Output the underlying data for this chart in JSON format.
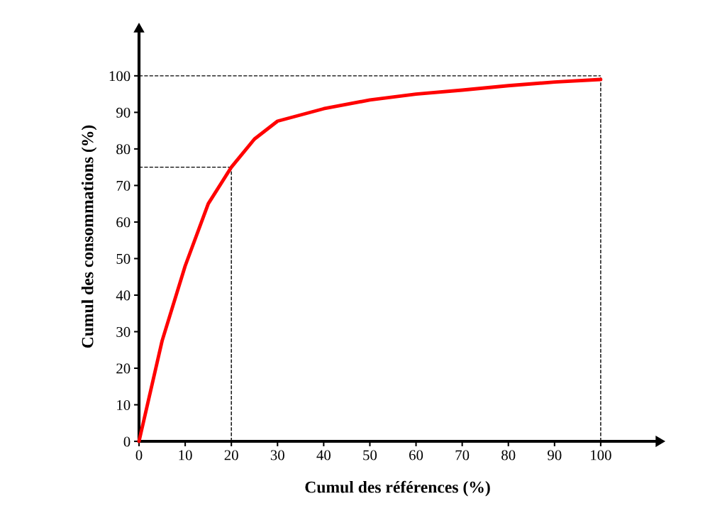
{
  "chart_data": {
    "type": "line",
    "xlabel": "Cumul des références (%)",
    "ylabel": "Cumul des consommations (%)",
    "x": [
      0,
      5,
      10,
      15,
      20,
      25,
      30,
      40,
      50,
      60,
      70,
      80,
      90,
      100
    ],
    "series": [
      {
        "color": "#ff0000",
        "values": [
          0,
          27.5,
          48,
          65,
          75,
          82.7,
          87.6,
          91,
          93.4,
          95,
          96.1,
          97.3,
          98.3,
          99
        ]
      }
    ],
    "xlim": [
      0,
      112
    ],
    "ylim": [
      0,
      112
    ],
    "xticks": [
      0,
      10,
      20,
      30,
      40,
      50,
      60,
      70,
      80,
      90,
      100
    ],
    "yticks": [
      0,
      10,
      20,
      30,
      40,
      50,
      60,
      70,
      80,
      90,
      100
    ],
    "ref_lines": [
      {
        "axis": "y",
        "value": 75,
        "line_style": "dashed",
        "color": "#000000"
      },
      {
        "axis": "x",
        "value": 20,
        "line_style": "dashed",
        "color": "#000000"
      },
      {
        "axis": "y",
        "value": 100,
        "line_style": "dashed",
        "color": "#000000"
      },
      {
        "axis": "x",
        "value": 100,
        "line_style": "dashed",
        "color": "#000000"
      }
    ],
    "grid": false,
    "legend": false,
    "marker": "none",
    "line_style": "solid"
  }
}
